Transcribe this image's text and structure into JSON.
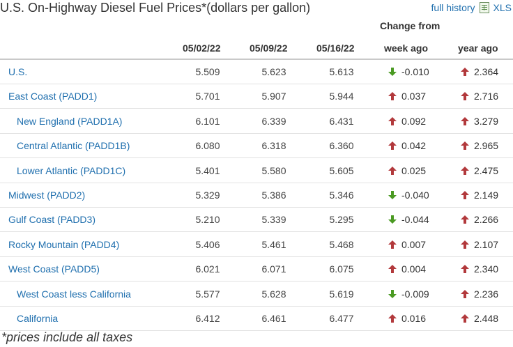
{
  "title": "U.S. On-Highway Diesel Fuel Prices*(dollars per gallon)",
  "links": {
    "history": "full history",
    "xls": "XLS",
    "xls_icon": "spreadsheet-icon"
  },
  "headers": {
    "change_from": "Change from",
    "dates": [
      "05/02/22",
      "05/09/22",
      "05/16/22"
    ],
    "week_ago": "week ago",
    "year_ago": "year ago"
  },
  "colors": {
    "link": "#1f6fae",
    "up": "#b2393c",
    "down": "#4a9a22"
  },
  "rows": [
    {
      "region": "U.S.",
      "indent": false,
      "values": [
        "5.509",
        "5.623",
        "5.613"
      ],
      "week_dir": "down",
      "week": "-0.010",
      "year_dir": "up",
      "year": "2.364"
    },
    {
      "region": "East Coast (PADD1)",
      "indent": false,
      "values": [
        "5.701",
        "5.907",
        "5.944"
      ],
      "week_dir": "up",
      "week": "0.037",
      "year_dir": "up",
      "year": "2.716"
    },
    {
      "region": "New England (PADD1A)",
      "indent": true,
      "values": [
        "6.101",
        "6.339",
        "6.431"
      ],
      "week_dir": "up",
      "week": "0.092",
      "year_dir": "up",
      "year": "3.279"
    },
    {
      "region": "Central Atlantic (PADD1B)",
      "indent": true,
      "values": [
        "6.080",
        "6.318",
        "6.360"
      ],
      "week_dir": "up",
      "week": "0.042",
      "year_dir": "up",
      "year": "2.965"
    },
    {
      "region": "Lower Atlantic (PADD1C)",
      "indent": true,
      "values": [
        "5.401",
        "5.580",
        "5.605"
      ],
      "week_dir": "up",
      "week": "0.025",
      "year_dir": "up",
      "year": "2.475"
    },
    {
      "region": "Midwest (PADD2)",
      "indent": false,
      "values": [
        "5.329",
        "5.386",
        "5.346"
      ],
      "week_dir": "down",
      "week": "-0.040",
      "year_dir": "up",
      "year": "2.149"
    },
    {
      "region": "Gulf Coast (PADD3)",
      "indent": false,
      "values": [
        "5.210",
        "5.339",
        "5.295"
      ],
      "week_dir": "down",
      "week": "-0.044",
      "year_dir": "up",
      "year": "2.266"
    },
    {
      "region": "Rocky Mountain (PADD4)",
      "indent": false,
      "values": [
        "5.406",
        "5.461",
        "5.468"
      ],
      "week_dir": "up",
      "week": "0.007",
      "year_dir": "up",
      "year": "2.107"
    },
    {
      "region": "West Coast (PADD5)",
      "indent": false,
      "values": [
        "6.021",
        "6.071",
        "6.075"
      ],
      "week_dir": "up",
      "week": "0.004",
      "year_dir": "up",
      "year": "2.340"
    },
    {
      "region": "West Coast less California",
      "indent": true,
      "values": [
        "5.577",
        "5.628",
        "5.619"
      ],
      "week_dir": "down",
      "week": "-0.009",
      "year_dir": "up",
      "year": "2.236"
    },
    {
      "region": "California",
      "indent": true,
      "values": [
        "6.412",
        "6.461",
        "6.477"
      ],
      "week_dir": "up",
      "week": "0.016",
      "year_dir": "up",
      "year": "2.448"
    }
  ],
  "footnote": "*prices include all taxes"
}
